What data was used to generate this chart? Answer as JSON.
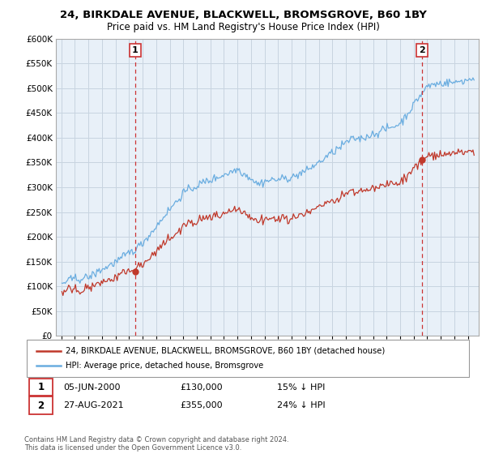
{
  "title": "24, BIRKDALE AVENUE, BLACKWELL, BROMSGROVE, B60 1BY",
  "subtitle": "Price paid vs. HM Land Registry's House Price Index (HPI)",
  "sale1_date": "05-JUN-2000",
  "sale1_price": 130000,
  "sale1_pct": "15% ↓ HPI",
  "sale1_label": "1",
  "sale2_date": "27-AUG-2021",
  "sale2_price": 355000,
  "sale2_label": "2",
  "sale2_pct": "24% ↓ HPI",
  "legend_line1": "24, BIRKDALE AVENUE, BLACKWELL, BROMSGROVE, B60 1BY (detached house)",
  "legend_line2": "HPI: Average price, detached house, Bromsgrove",
  "footer": "Contains HM Land Registry data © Crown copyright and database right 2024.\nThis data is licensed under the Open Government Licence v3.0.",
  "hpi_color": "#6aade0",
  "price_color": "#c0392b",
  "vline_color": "#cc3333",
  "bg_chart": "#e8f0f8",
  "ylim": [
    0,
    600000
  ],
  "yticks": [
    0,
    50000,
    100000,
    150000,
    200000,
    250000,
    300000,
    350000,
    400000,
    450000,
    500000,
    550000,
    600000
  ],
  "background_color": "#ffffff",
  "grid_color": "#c8d4e0"
}
